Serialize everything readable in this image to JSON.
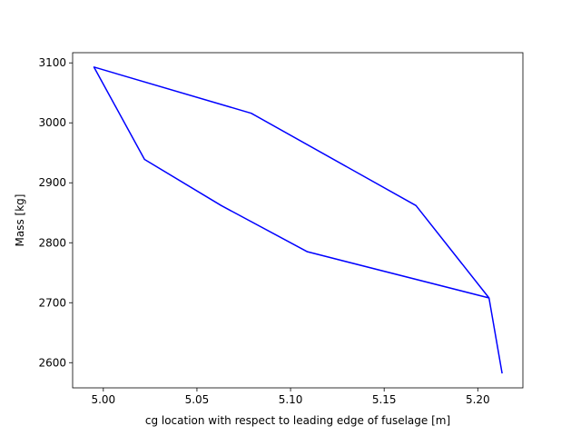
{
  "chart_data": {
    "type": "line",
    "title": "",
    "xlabel": "cg location with respect to leading edge of fuselage [m]",
    "ylabel": "Mass [kg]",
    "xlim": [
      4.9836,
      5.2241
    ],
    "ylim": [
      2558,
      3117
    ],
    "x_ticks": [
      5.0,
      5.05,
      5.1,
      5.15,
      5.2
    ],
    "x_tick_labels": [
      "5.00",
      "5.05",
      "5.10",
      "5.15",
      "5.20"
    ],
    "y_ticks": [
      2600,
      2700,
      2800,
      2900,
      3000,
      3100
    ],
    "y_tick_labels": [
      "2600",
      "2700",
      "2800",
      "2900",
      "3000",
      "3100"
    ],
    "grid": false,
    "legend": "none",
    "series": [
      {
        "color": "#0000ff",
        "x": [
          5.213,
          5.206,
          5.167,
          5.079,
          4.995,
          5.022,
          5.063,
          5.109,
          5.206
        ],
        "y": [
          2582,
          2708,
          2862,
          3016,
          3093,
          2939,
          2862,
          2785,
          2708
        ]
      }
    ]
  }
}
